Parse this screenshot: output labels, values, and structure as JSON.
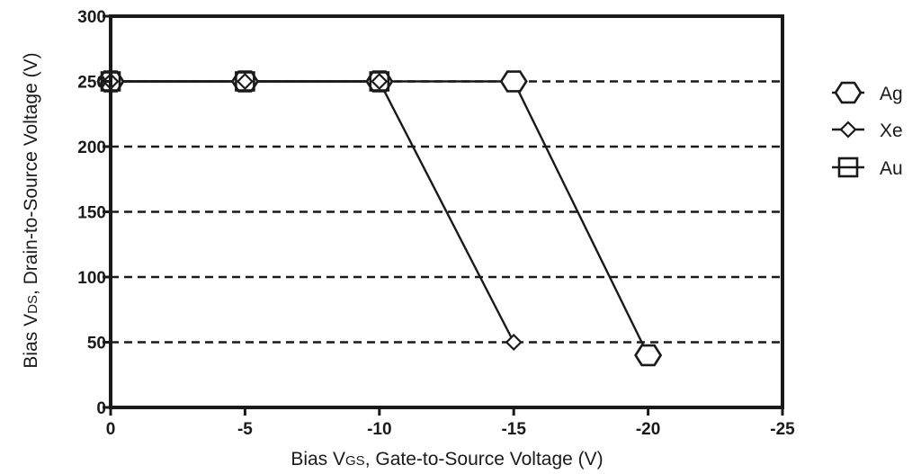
{
  "chart_data": {
    "type": "line",
    "xlabel": {
      "prefix": "Bias V",
      "sub": "GS",
      "suffix": ", Gate-to-Source Voltage (V)"
    },
    "ylabel": {
      "prefix": "Bias V",
      "sub": "DS",
      "suffix": ", Drain-to-Source Voltage (V)"
    },
    "xlim": [
      0,
      -25
    ],
    "ylim": [
      0,
      300
    ],
    "xticks": [
      0,
      -5,
      -10,
      -15,
      -20,
      -25
    ],
    "yticks": [
      0,
      50,
      100,
      150,
      200,
      250,
      300
    ],
    "grid": {
      "y": "dashed",
      "x": "none"
    },
    "legend_position": "right",
    "series": [
      {
        "name": "Ag",
        "marker": "hexagon",
        "x": [
          0,
          -5,
          -10,
          -15,
          -20
        ],
        "y": [
          250,
          250,
          250,
          250,
          40
        ]
      },
      {
        "name": "Xe",
        "marker": "diamond",
        "x": [
          0,
          -5,
          -10,
          -15
        ],
        "y": [
          250,
          250,
          250,
          50
        ]
      },
      {
        "name": "Au",
        "marker": "square",
        "x": [
          0,
          -5,
          -10
        ],
        "y": [
          250,
          250,
          250
        ]
      }
    ]
  }
}
